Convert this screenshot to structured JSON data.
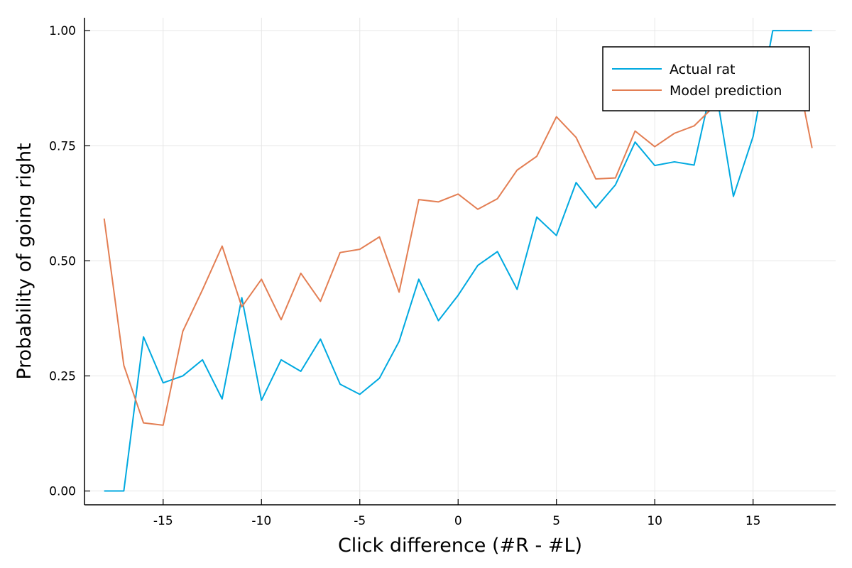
{
  "chart_data": {
    "type": "line",
    "title": "",
    "xlabel": "Click difference (#R - #L)",
    "ylabel": "Probability of going right",
    "xlim": [
      -19.0,
      19.2
    ],
    "ylim": [
      -0.03,
      1.028
    ],
    "xticks": [
      -15,
      -10,
      -5,
      0,
      5,
      10,
      15
    ],
    "xtick_labels": [
      "-15",
      "-10",
      "-5",
      "0",
      "5",
      "10",
      "15"
    ],
    "yticks": [
      0.0,
      0.25,
      0.5,
      0.75,
      1.0
    ],
    "ytick_labels": [
      "0.00",
      "0.25",
      "0.50",
      "0.75",
      "1.00"
    ],
    "grid": true,
    "legend_position": "top-right",
    "x": [
      -18,
      -17,
      -16,
      -15,
      -14,
      -13,
      -12,
      -11,
      -10,
      -9,
      -8,
      -7,
      -6,
      -5,
      -4,
      -3,
      -2,
      -1,
      0,
      1,
      2,
      3,
      4,
      5,
      6,
      7,
      8,
      9,
      10,
      11,
      12,
      13,
      14,
      15,
      16,
      17,
      18
    ],
    "series": [
      {
        "name": "Actual rat",
        "color": "#00a9e0",
        "values": [
          0.0,
          0.0,
          0.335,
          0.235,
          0.25,
          0.285,
          0.2,
          0.42,
          0.197,
          0.285,
          0.26,
          0.33,
          0.232,
          0.21,
          0.245,
          0.325,
          0.46,
          0.37,
          0.425,
          0.49,
          0.52,
          0.438,
          0.595,
          0.555,
          0.67,
          0.615,
          0.665,
          0.758,
          0.707,
          0.715,
          0.708,
          0.9,
          0.64,
          0.77,
          1.0,
          1.0,
          1.0
        ]
      },
      {
        "name": "Model prediction",
        "color": "#e37e53",
        "values": [
          0.592,
          0.273,
          0.148,
          0.143,
          0.347,
          0.437,
          0.532,
          0.4,
          0.46,
          0.372,
          0.473,
          0.412,
          0.518,
          0.525,
          0.552,
          0.432,
          0.633,
          0.628,
          0.645,
          0.612,
          0.635,
          0.697,
          0.727,
          0.813,
          0.768,
          0.678,
          0.68,
          0.782,
          0.748,
          0.777,
          0.793,
          0.835,
          0.88,
          0.9,
          0.94,
          0.96,
          0.745
        ]
      }
    ]
  }
}
